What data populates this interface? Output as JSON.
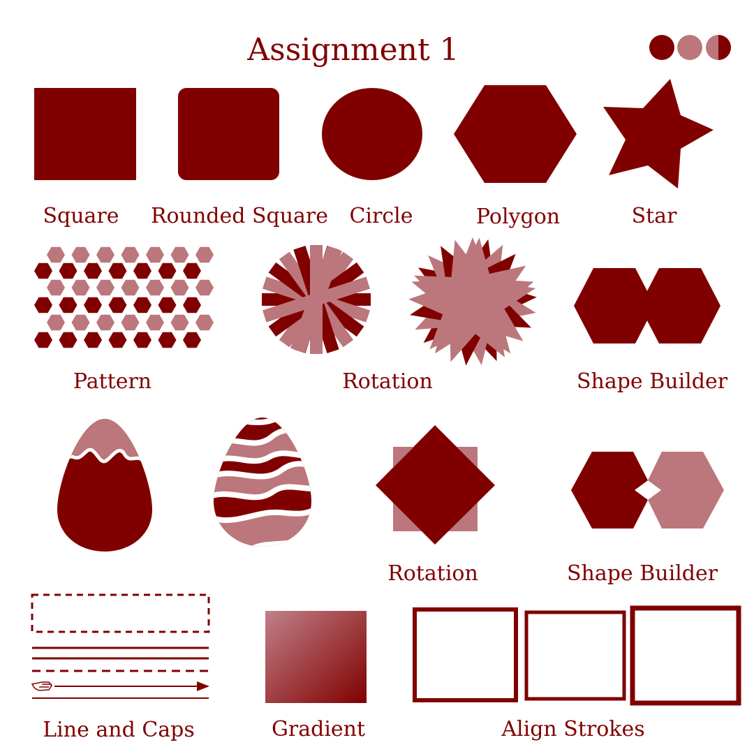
{
  "title": "Assignment 1",
  "colors": {
    "primary": "#800000",
    "light": "#bb777c",
    "white": "#ffffff"
  },
  "labels": {
    "square": "Square",
    "rounded_square": "Rounded Square",
    "circle": "Circle",
    "polygon": "Polygon",
    "star": "Star",
    "pattern": "Pattern",
    "rotation_1": "Rotation",
    "shape_builder_1": "Shape Builder",
    "rotation_2": "Rotation",
    "shape_builder_2": "Shape Builder",
    "line_and_caps": "Line and Caps",
    "gradient": "Gradient",
    "align_strokes": "Align Strokes"
  }
}
